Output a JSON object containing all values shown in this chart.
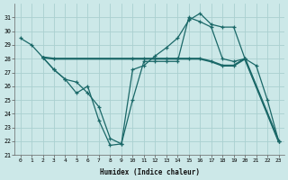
{
  "xlabel": "Humidex (Indice chaleur)",
  "background_color": "#cce8e8",
  "grid_color": "#aad0d0",
  "line_color": "#1a6868",
  "xlim": [
    -0.5,
    23.5
  ],
  "ylim": [
    21,
    32
  ],
  "yticks": [
    21,
    22,
    23,
    24,
    25,
    26,
    27,
    28,
    29,
    30,
    31
  ],
  "xticks": [
    0,
    1,
    2,
    3,
    4,
    5,
    6,
    7,
    8,
    9,
    10,
    11,
    12,
    13,
    14,
    15,
    16,
    17,
    18,
    19,
    20,
    21,
    22,
    23
  ],
  "line1_x": [
    0,
    1,
    2,
    3,
    4,
    5,
    6,
    7,
    8,
    9,
    10,
    11,
    12,
    13,
    14,
    15,
    16,
    17,
    18,
    19,
    20,
    21,
    22,
    23
  ],
  "line1_y": [
    29.5,
    29.0,
    28.1,
    27.2,
    26.5,
    25.5,
    26.0,
    23.5,
    21.7,
    21.8,
    27.2,
    27.5,
    28.2,
    28.8,
    29.5,
    30.8,
    31.3,
    30.5,
    30.3,
    30.3,
    28.0,
    27.5,
    25.0,
    22.0
  ],
  "line2_x": [
    2,
    3,
    4,
    5,
    6,
    7,
    8,
    9,
    10,
    11,
    12,
    13,
    14,
    15,
    16,
    17,
    18,
    19,
    20,
    23
  ],
  "line2_y": [
    28.1,
    27.2,
    26.5,
    26.3,
    25.5,
    24.5,
    22.2,
    21.8,
    25.0,
    27.8,
    27.8,
    27.8,
    27.8,
    31.0,
    30.7,
    30.3,
    28.0,
    27.8,
    28.0,
    22.0
  ],
  "line3_x": [
    2,
    3,
    10,
    11,
    12,
    13,
    14,
    15,
    16,
    17,
    18,
    19,
    20,
    23
  ],
  "line3_y": [
    28.1,
    28.0,
    28.0,
    28.0,
    28.0,
    28.0,
    28.0,
    28.0,
    28.0,
    27.8,
    27.5,
    27.5,
    28.0,
    22.0
  ]
}
